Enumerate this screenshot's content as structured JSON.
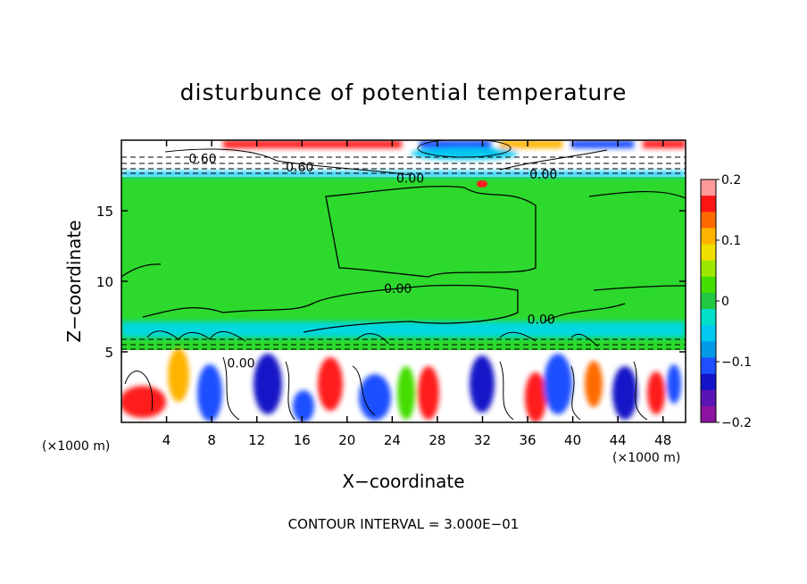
{
  "chart_data": {
    "type": "heatmap",
    "title": "disturbunce of potential temperature",
    "xlabel": "X−coordinate",
    "ylabel": "Z−coordinate",
    "x_unit_left": "(×1000 m)",
    "x_unit_right": "(×1000 m)",
    "footer": "CONTOUR INTERVAL = 3.000E−01",
    "xlim": [
      0,
      50
    ],
    "ylim": [
      0,
      20
    ],
    "xticks": [
      4,
      8,
      12,
      16,
      20,
      24,
      28,
      32,
      36,
      40,
      44,
      48
    ],
    "xtick_labels": [
      "4",
      "8",
      "12",
      "16",
      "20",
      "24",
      "28",
      "32",
      "36",
      "40",
      "44",
      "48"
    ],
    "yticks": [
      5,
      10,
      15
    ],
    "ytick_labels": [
      "5",
      "10",
      "15"
    ],
    "colorbar": {
      "range": [
        -0.2,
        0.2
      ],
      "ticks": [
        0.2,
        0.1,
        0,
        -0.1,
        -0.2
      ],
      "tick_labels": [
        "0.2",
        "0.1",
        "0",
        "−0.1",
        "−0.2"
      ],
      "colors": [
        "#ff9a9a",
        "#ff1414",
        "#ff6a00",
        "#ffb400",
        "#f0e000",
        "#9ce800",
        "#44dd00",
        "#22c842",
        "#00e0c8",
        "#00c8f0",
        "#009ae6",
        "#1e50ff",
        "#1414c8",
        "#5a14b4",
        "#8c14a0"
      ]
    },
    "contour_labels": [
      {
        "text": "0.60",
        "x": 7.2,
        "y": 18.7
      },
      {
        "text": "0.60",
        "x": 15.8,
        "y": 18.1
      },
      {
        "text": "0.00",
        "x": 25.6,
        "y": 17.3
      },
      {
        "text": "0.00",
        "x": 37.4,
        "y": 17.6
      },
      {
        "text": "0.00",
        "x": 24.5,
        "y": 9.5
      },
      {
        "text": "0.00",
        "x": 37.2,
        "y": 7.3
      },
      {
        "text": "0.00",
        "x": 10.6,
        "y": 4.2
      }
    ]
  }
}
